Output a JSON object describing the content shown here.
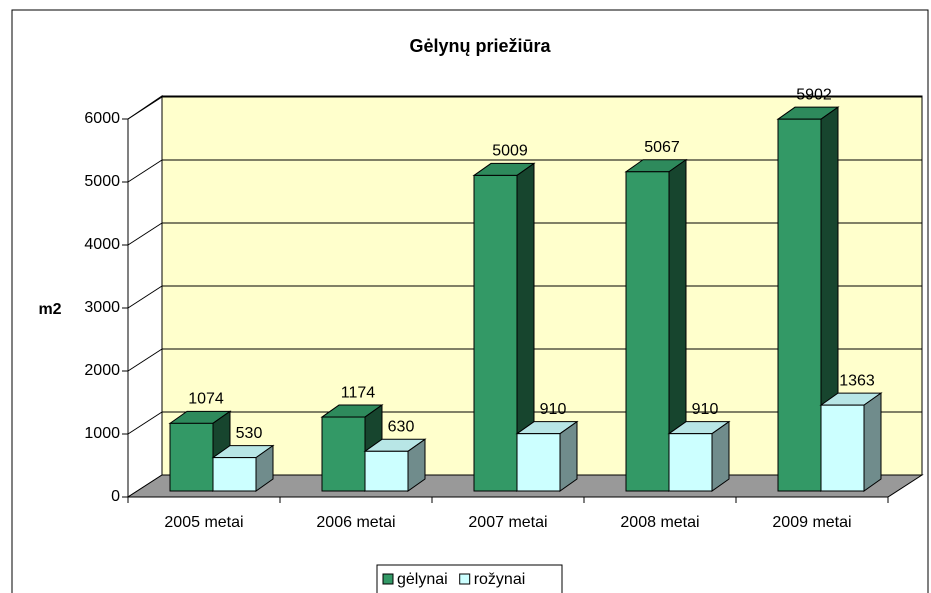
{
  "chart_data": {
    "type": "bar",
    "title": "Gėlynų priežiūra",
    "y_label": "m2",
    "categories": [
      "2005 metai",
      "2006 metai",
      "2007 metai",
      "2008 metai",
      "2009 metai"
    ],
    "series": [
      {
        "name": "gėlynai",
        "color": "#339966",
        "values": [
          1074,
          1174,
          5009,
          5067,
          5902
        ]
      },
      {
        "name": "rožynai",
        "color": "#ccffff",
        "values": [
          530,
          630,
          910,
          910,
          1363
        ]
      }
    ],
    "ylim": [
      0,
      6000
    ],
    "yticks": [
      0,
      1000,
      2000,
      3000,
      4000,
      5000,
      6000
    ],
    "grid": true,
    "legend": "bottom"
  }
}
